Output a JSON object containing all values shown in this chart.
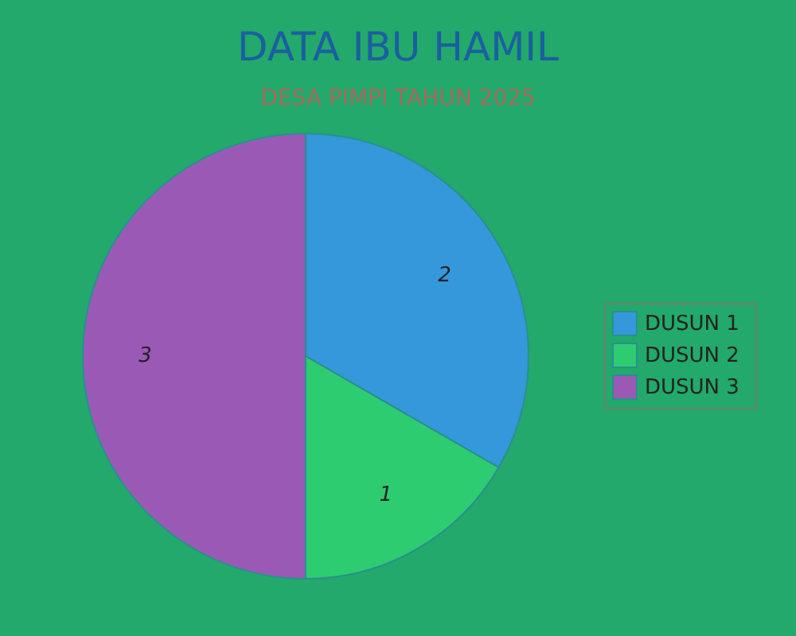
{
  "chart_data": {
    "type": "pie",
    "title": "DATA IBU HAMIL",
    "subtitle": "DESA PIMPI TAHUN 2025",
    "categories": [
      "DUSUN 1",
      "DUSUN 2",
      "DUSUN 3"
    ],
    "values": [
      2,
      1,
      3
    ],
    "colors": [
      "#3498db",
      "#2ecc71",
      "#9b59b6"
    ],
    "data_labels": true,
    "legend": "right"
  }
}
